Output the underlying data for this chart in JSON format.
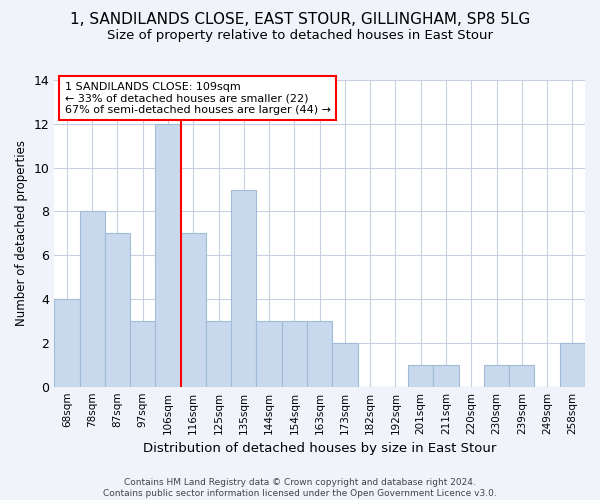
{
  "title": "1, SANDILANDS CLOSE, EAST STOUR, GILLINGHAM, SP8 5LG",
  "subtitle": "Size of property relative to detached houses in East Stour",
  "xlabel": "Distribution of detached houses by size in East Stour",
  "ylabel": "Number of detached properties",
  "bin_labels": [
    "68sqm",
    "78sqm",
    "87sqm",
    "97sqm",
    "106sqm",
    "116sqm",
    "125sqm",
    "135sqm",
    "144sqm",
    "154sqm",
    "163sqm",
    "173sqm",
    "182sqm",
    "192sqm",
    "201sqm",
    "211sqm",
    "220sqm",
    "230sqm",
    "239sqm",
    "249sqm",
    "258sqm"
  ],
  "bar_heights": [
    4,
    8,
    7,
    3,
    12,
    7,
    3,
    9,
    3,
    3,
    3,
    2,
    0,
    0,
    1,
    1,
    0,
    1,
    1,
    0,
    2
  ],
  "bar_color": "#c9d9ed",
  "bar_edgecolor": "#a0bcd8",
  "property_line_x": 4.5,
  "annotation_text": "1 SANDILANDS CLOSE: 109sqm\n← 33% of detached houses are smaller (22)\n67% of semi-detached houses are larger (44) →",
  "annotation_box_color": "white",
  "annotation_border_color": "red",
  "vline_color": "red",
  "ylim": [
    0,
    14
  ],
  "yticks": [
    0,
    2,
    4,
    6,
    8,
    10,
    12,
    14
  ],
  "footer_text": "Contains HM Land Registry data © Crown copyright and database right 2024.\nContains public sector information licensed under the Open Government Licence v3.0.",
  "background_color": "#f0f3fa",
  "plot_bg_color": "#ffffff",
  "grid_color": "#c8d0e0",
  "title_fontsize": 11,
  "subtitle_fontsize": 9.5,
  "ylabel_fontsize": 8.5,
  "xlabel_fontsize": 9.5
}
